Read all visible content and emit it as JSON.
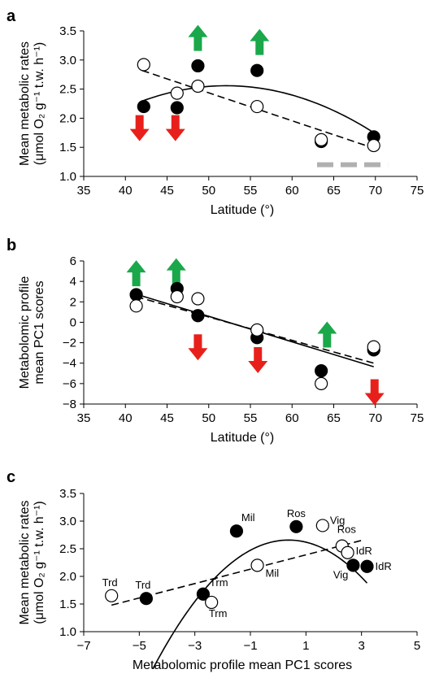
{
  "chart_data": [
    {
      "panel_label": "a",
      "type": "scatter",
      "xlabel": "Latitude (°)",
      "ylabel_line1": "Mean metabolic rates",
      "ylabel_line2": "(μmol O₂ g⁻¹ t.w. h⁻¹)",
      "xlim": [
        35,
        75
      ],
      "ylim": [
        1.0,
        3.5
      ],
      "xticks": [
        35,
        40,
        45,
        50,
        55,
        60,
        65,
        70,
        75
      ],
      "xtick_labels": [
        "35",
        "40",
        "45",
        "50",
        "55",
        "60",
        "65",
        "70",
        "75"
      ],
      "yticks": [
        1.0,
        1.5,
        2.0,
        2.5,
        3.0,
        3.5
      ],
      "ytick_labels": [
        "1.0",
        "1.5",
        "2.0",
        "2.5",
        "3.0",
        "3.5"
      ],
      "series": [
        {
          "marker": "filled",
          "points": [
            [
              42.2,
              2.2
            ],
            [
              46.2,
              2.18
            ],
            [
              48.7,
              2.9
            ],
            [
              55.8,
              2.82
            ],
            [
              63.5,
              1.6
            ],
            [
              69.8,
              1.68
            ]
          ]
        },
        {
          "marker": "open",
          "points": [
            [
              42.2,
              2.92
            ],
            [
              46.2,
              2.43
            ],
            [
              48.7,
              2.55
            ],
            [
              55.8,
              2.2
            ],
            [
              63.5,
              1.63
            ],
            [
              69.8,
              1.53
            ]
          ]
        }
      ],
      "fits": [
        {
          "style": "solid",
          "kind": "quadratic",
          "x_range": [
            42,
            69.5
          ],
          "coef": [
            -4.4436,
            0.26866,
            -0.0025773
          ]
        },
        {
          "style": "dashed",
          "kind": "linear",
          "points": [
            [
              42,
              2.82
            ],
            [
              69.5,
              1.5
            ]
          ]
        }
      ],
      "grey_bar": {
        "x_range": [
          63,
          71.5
        ],
        "y": 1.2,
        "color": "#b0b0b0"
      },
      "arrows": [
        {
          "x": 41.7,
          "y_mid": 1.83,
          "direction": "down",
          "color": "#e8201b"
        },
        {
          "x": 46.0,
          "y_mid": 1.83,
          "direction": "down",
          "color": "#e8201b"
        },
        {
          "x": 48.7,
          "y_mid": 3.38,
          "direction": "up",
          "color": "#1aa84a"
        },
        {
          "x": 56.1,
          "y_mid": 3.31,
          "direction": "up",
          "color": "#1aa84a"
        }
      ]
    },
    {
      "panel_label": "b",
      "type": "scatter",
      "xlabel": "Latitude (°)",
      "ylabel_line1": "Metabolomic profile",
      "ylabel_line2": "mean PC1 scores",
      "xlim": [
        35,
        75
      ],
      "ylim": [
        -8,
        6
      ],
      "xticks": [
        35,
        40,
        45,
        50,
        55,
        60,
        65,
        70,
        75
      ],
      "xtick_labels": [
        "35",
        "40",
        "45",
        "50",
        "55",
        "60",
        "65",
        "70",
        "75"
      ],
      "yticks": [
        -8,
        -6,
        -4,
        -2,
        0,
        2,
        4,
        6
      ],
      "ytick_labels": [
        "−8",
        "−6",
        "−4",
        "−2",
        "0",
        "2",
        "4",
        "6"
      ],
      "series": [
        {
          "marker": "filled",
          "points": [
            [
              41.3,
              2.7
            ],
            [
              46.2,
              3.3
            ],
            [
              48.7,
              0.65
            ],
            [
              55.8,
              -1.5
            ],
            [
              63.5,
              -4.75
            ],
            [
              69.8,
              -2.7
            ]
          ]
        },
        {
          "marker": "open",
          "points": [
            [
              41.3,
              1.6
            ],
            [
              46.2,
              2.5
            ],
            [
              48.7,
              2.3
            ],
            [
              55.8,
              -0.75
            ],
            [
              63.5,
              -6.0
            ],
            [
              69.8,
              -2.4
            ]
          ]
        }
      ],
      "fits": [
        {
          "style": "solid",
          "kind": "linear",
          "points": [
            [
              41.3,
              2.75
            ],
            [
              69.8,
              -4.35
            ]
          ]
        },
        {
          "style": "dashed",
          "kind": "linear",
          "points": [
            [
              41.3,
              2.5
            ],
            [
              69.8,
              -4.0
            ]
          ]
        }
      ],
      "arrows": [
        {
          "x": 41.3,
          "y_mid": 4.8,
          "direction": "up",
          "color": "#1aa84a"
        },
        {
          "x": 46.1,
          "y_mid": 5.0,
          "direction": "up",
          "color": "#1aa84a"
        },
        {
          "x": 48.7,
          "y_mid": -2.45,
          "direction": "down",
          "color": "#e8201b"
        },
        {
          "x": 55.9,
          "y_mid": -3.7,
          "direction": "down",
          "color": "#e8201b"
        },
        {
          "x": 64.2,
          "y_mid": -1.2,
          "direction": "up",
          "color": "#1aa84a"
        },
        {
          "x": 69.9,
          "y_mid": -6.85,
          "direction": "down",
          "color": "#e8201b"
        }
      ]
    },
    {
      "panel_label": "c",
      "type": "scatter",
      "xlabel": "Metabolomic profile mean PC1 scores",
      "ylabel_line1": "Mean metabolic rates",
      "ylabel_line2": "(μmol O₂ g⁻¹ t.w. h⁻¹)",
      "xlim": [
        -7,
        5
      ],
      "ylim": [
        1.0,
        3.5
      ],
      "xticks": [
        -7,
        -5,
        -3,
        -1,
        1,
        3,
        5
      ],
      "xtick_labels": [
        "−7",
        "−5",
        "−3",
        "−1",
        "1",
        "3",
        "5"
      ],
      "yticks": [
        1.0,
        1.5,
        2.0,
        2.5,
        3.0,
        3.5
      ],
      "ytick_labels": [
        "1.0",
        "1.5",
        "2.0",
        "2.5",
        "3.0",
        "3.5"
      ],
      "series": [
        {
          "marker": "filled",
          "points": [
            {
              "x": -4.75,
              "y": 1.6,
              "label": "Trd"
            },
            {
              "x": -2.7,
              "y": 1.68,
              "label": "Trm"
            },
            {
              "x": -1.5,
              "y": 2.82,
              "label": "Mil"
            },
            {
              "x": 0.65,
              "y": 2.9,
              "label": "Ros"
            },
            {
              "x": 2.7,
              "y": 2.2,
              "label": "Vig"
            },
            {
              "x": 3.2,
              "y": 2.18,
              "label": "IdR"
            }
          ]
        },
        {
          "marker": "open",
          "points": [
            {
              "x": -6.0,
              "y": 1.65,
              "label": "Trd"
            },
            {
              "x": -2.4,
              "y": 1.53,
              "label": "Trm"
            },
            {
              "x": -0.75,
              "y": 2.2,
              "label": "Mil"
            },
            {
              "x": 1.6,
              "y": 2.92,
              "label": "Vig"
            },
            {
              "x": 2.3,
              "y": 2.55,
              "label": "Ros"
            },
            {
              "x": 2.5,
              "y": 2.43,
              "label": "IdR"
            }
          ]
        }
      ],
      "fits": [
        {
          "style": "solid",
          "kind": "quadratic",
          "x_range": [
            -4.5,
            3.2
          ],
          "coef": [
            2.6436,
            0.073183,
            -0.09758
          ]
        },
        {
          "style": "dashed",
          "kind": "linear",
          "points": [
            [
              -6.0,
              1.48
            ],
            [
              3.0,
              2.65
            ]
          ]
        }
      ]
    }
  ]
}
